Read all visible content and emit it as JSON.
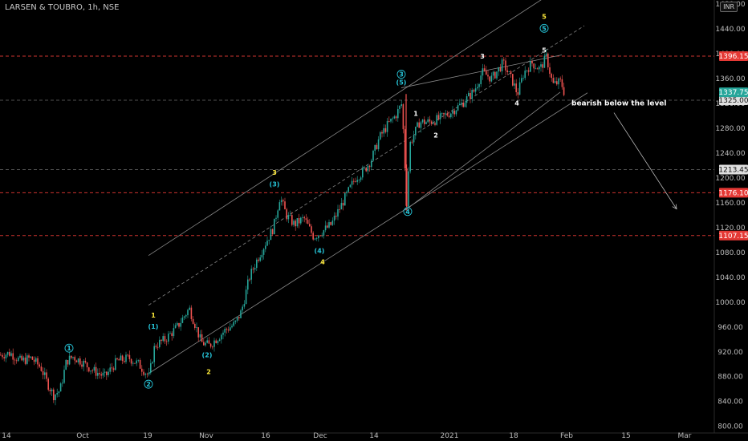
{
  "header": {
    "symbol": "LARSEN & TOUBRO, 1h, NSE",
    "currency": "INR"
  },
  "chart_data": {
    "type": "candlestick",
    "ylim": [
      788,
      1480
    ],
    "y_ticks": [
      800,
      840,
      880,
      920,
      960,
      1000,
      1040,
      1080,
      1120,
      1160,
      1200,
      1240,
      1280,
      1320,
      1360,
      1400,
      1440,
      1480
    ],
    "x_ticks": [
      "14",
      "Oct",
      "19",
      "Nov",
      "16",
      "Dec",
      "14",
      "2021",
      "18",
      "Feb",
      "15",
      "Mar"
    ],
    "levels": [
      {
        "value": 1396.15,
        "label": "1396.15",
        "style": "red-dashed"
      },
      {
        "value": 1325.0,
        "label": "1325.00",
        "style": "gray-dashed"
      },
      {
        "value": 1213.45,
        "label": "1213.45",
        "style": "gray-dashed"
      },
      {
        "value": 1176.1,
        "label": "1176.10",
        "style": "red-dashed"
      },
      {
        "value": 1107.15,
        "label": "1107.15",
        "style": "red-dashed"
      }
    ],
    "last_price": {
      "value": 1337.75,
      "label": "1337.75"
    },
    "price_path": [
      [
        0,
        915
      ],
      [
        12,
        918
      ],
      [
        25,
        905
      ],
      [
        38,
        910
      ],
      [
        50,
        895
      ],
      [
        58,
        870
      ],
      [
        66,
        850
      ],
      [
        74,
        858
      ],
      [
        82,
        905
      ],
      [
        90,
        912
      ],
      [
        100,
        905
      ],
      [
        115,
        890
      ],
      [
        130,
        880
      ],
      [
        145,
        905
      ],
      [
        160,
        910
      ],
      [
        172,
        900
      ],
      [
        185,
        880
      ],
      [
        192,
        930
      ],
      [
        205,
        940
      ],
      [
        220,
        960
      ],
      [
        235,
        990
      ],
      [
        242,
        965
      ],
      [
        250,
        935
      ],
      [
        260,
        930
      ],
      [
        268,
        940
      ],
      [
        280,
        955
      ],
      [
        292,
        965
      ],
      [
        300,
        985
      ],
      [
        310,
        1040
      ],
      [
        320,
        1070
      ],
      [
        332,
        1100
      ],
      [
        340,
        1120
      ],
      [
        348,
        1170
      ],
      [
        356,
        1140
      ],
      [
        366,
        1125
      ],
      [
        378,
        1135
      ],
      [
        390,
        1105
      ],
      [
        402,
        1115
      ],
      [
        412,
        1125
      ],
      [
        422,
        1150
      ],
      [
        432,
        1175
      ],
      [
        442,
        1200
      ],
      [
        452,
        1210
      ],
      [
        462,
        1230
      ],
      [
        472,
        1265
      ],
      [
        482,
        1285
      ],
      [
        492,
        1300
      ],
      [
        500,
        1320
      ],
      [
        506,
        1160
      ],
      [
        510,
        1255
      ],
      [
        522,
        1290
      ],
      [
        534,
        1290
      ],
      [
        546,
        1295
      ],
      [
        560,
        1305
      ],
      [
        575,
        1320
      ],
      [
        590,
        1340
      ],
      [
        600,
        1370
      ],
      [
        612,
        1360
      ],
      [
        626,
        1385
      ],
      [
        638,
        1355
      ],
      [
        644,
        1335
      ],
      [
        652,
        1370
      ],
      [
        662,
        1385
      ],
      [
        672,
        1375
      ],
      [
        680,
        1395
      ],
      [
        688,
        1350
      ],
      [
        698,
        1355
      ],
      [
        704,
        1330
      ]
    ],
    "channel_lines": [
      {
        "from": [
          185,
          1075
        ],
        "to": [
          690,
          1500
        ]
      },
      {
        "from": [
          185,
          995
        ],
        "to": [
          728,
          1445
        ]
      },
      {
        "from": [
          185,
          885
        ],
        "to": [
          732,
          1337
        ]
      }
    ],
    "wedge_lines": [
      {
        "from": [
          500,
          1345
        ],
        "to": [
          700,
          1398
        ]
      },
      {
        "from": [
          505,
          1148
        ],
        "to": [
          698,
          1338
        ]
      }
    ],
    "projection": {
      "from": [
        765,
        1305
      ],
      "to": [
        843,
        1150
      ]
    },
    "wave_labels": [
      {
        "text": "1",
        "x": 86,
        "y": 922,
        "color": "#26c6da",
        "circle": true
      },
      {
        "text": "2",
        "x": 185,
        "y": 864,
        "color": "#26c6da",
        "circle": true
      },
      {
        "text": "1",
        "x": 191,
        "y": 975,
        "color": "#ffeb3b"
      },
      {
        "text": "(1)",
        "x": 191,
        "y": 957,
        "color": "#26c6da"
      },
      {
        "text": "(2)",
        "x": 258,
        "y": 911,
        "color": "#26c6da"
      },
      {
        "text": "2",
        "x": 260,
        "y": 884,
        "color": "#ffeb3b"
      },
      {
        "text": "3",
        "x": 342,
        "y": 1205,
        "color": "#ffeb3b"
      },
      {
        "text": "(3)",
        "x": 342,
        "y": 1186,
        "color": "#26c6da"
      },
      {
        "text": "(4)",
        "x": 398,
        "y": 1079,
        "color": "#26c6da"
      },
      {
        "text": "4",
        "x": 402,
        "y": 1061,
        "color": "#ffeb3b"
      },
      {
        "text": "3",
        "x": 500,
        "y": 1363,
        "color": "#26c6da",
        "circle": true
      },
      {
        "text": "(5)",
        "x": 500,
        "y": 1350,
        "color": "#26c6da"
      },
      {
        "text": "4",
        "x": 508,
        "y": 1142,
        "color": "#26c6da",
        "circle": true
      },
      {
        "text": "1",
        "x": 518,
        "y": 1300,
        "color": "#ffffff"
      },
      {
        "text": "2",
        "x": 543,
        "y": 1265,
        "color": "#ffffff"
      },
      {
        "text": "3",
        "x": 601,
        "y": 1392,
        "color": "#ffffff"
      },
      {
        "text": "4",
        "x": 644,
        "y": 1317,
        "color": "#ffffff"
      },
      {
        "text": "5",
        "x": 678,
        "y": 1456,
        "color": "#ffeb3b"
      },
      {
        "text": "5",
        "x": 678,
        "y": 1437,
        "color": "#26c6da",
        "circle": true
      },
      {
        "text": "5",
        "x": 678,
        "y": 1402,
        "color": "#ffffff"
      }
    ],
    "annotation": {
      "text": "bearish below the level",
      "x": 712,
      "y": 1317
    }
  },
  "colors": {
    "up": "#26a69a",
    "down": "#ef5350",
    "level_red": "#e53935",
    "level_gray": "#9e9e9e",
    "axis_tag_gray": "#e0e0e0",
    "axis_tag_red": "#e53935",
    "last_price": "#26a69a"
  }
}
